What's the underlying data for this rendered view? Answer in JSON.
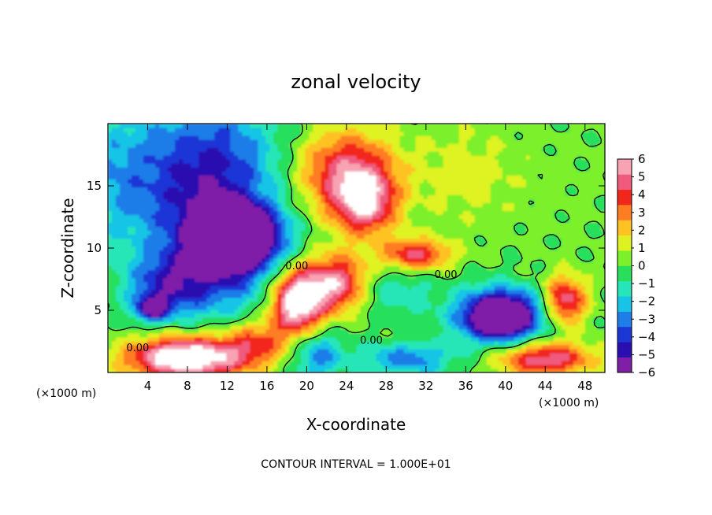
{
  "chart_data": {
    "type": "heatmap",
    "title": "zonal velocity",
    "xlabel": "X-coordinate",
    "ylabel": "Z-coordinate",
    "x_scale_note": "(×1000 m)",
    "z_scale_note": "(×1000 m)",
    "footer": "CONTOUR INTERVAL = 1.000E+01",
    "xlim": [
      0,
      50
    ],
    "ylim": [
      0,
      20
    ],
    "x_ticks": [
      4,
      8,
      12,
      16,
      20,
      24,
      28,
      32,
      36,
      40,
      44,
      48
    ],
    "y_ticks": [
      5,
      10,
      15
    ],
    "colorbar": {
      "range": [
        -6,
        6
      ],
      "tick_values": [
        6,
        5,
        4,
        3,
        2,
        1,
        0,
        -1,
        -2,
        -3,
        -4,
        -5,
        -6
      ],
      "tick_labels": [
        "6",
        "5",
        "4",
        "3",
        "2",
        "1",
        "0",
        "−1",
        "−2",
        "−3",
        "−4",
        "−5",
        "−6"
      ],
      "colors": [
        "#7f1fa8",
        "#2a0fb0",
        "#1d36d6",
        "#1f7de8",
        "#17c4e6",
        "#25e6b8",
        "#28df5c",
        "#7cf02a",
        "#dff221",
        "#ffc223",
        "#ff7d22",
        "#f2271c",
        "#ef5a7d",
        "#f7a3b3"
      ],
      "above_max_color": "#ffffff"
    },
    "contour_labels": [
      {
        "text": "0.00",
        "x": 3,
        "z": 1.7
      },
      {
        "text": "0.00",
        "x": 19,
        "z": 8.3
      },
      {
        "text": "0.00",
        "x": 26.5,
        "z": 2.3
      },
      {
        "text": "0.00",
        "x": 34,
        "z": 7.6
      }
    ],
    "features": [
      {
        "x": 0,
        "z": 16,
        "rx": 5,
        "rz": 5,
        "value": -2
      },
      {
        "x": 10,
        "z": 15,
        "rx": 7,
        "rz": 7,
        "value": -5
      },
      {
        "x": 13,
        "z": 11,
        "rx": 4,
        "rz": 2.2,
        "value": -9
      },
      {
        "x": 6,
        "z": 7,
        "rx": 4,
        "rz": 2.5,
        "value": -3.5
      },
      {
        "x": 4.5,
        "z": 5.2,
        "rx": 1.6,
        "rz": 1,
        "value": -5
      },
      {
        "x": 12,
        "z": 8,
        "rx": 5,
        "rz": 3,
        "value": -2.5
      },
      {
        "x": 8,
        "z": 1.2,
        "rx": 6,
        "rz": 1.7,
        "value": 8
      },
      {
        "x": 15,
        "z": 2.5,
        "rx": 3,
        "rz": 1.7,
        "value": 3
      },
      {
        "x": 19,
        "z": 5.7,
        "rx": 2.6,
        "rz": 2.6,
        "value": 7.5
      },
      {
        "x": 23,
        "z": 7.2,
        "rx": 3,
        "rz": 2.3,
        "value": 5.5
      },
      {
        "x": 21,
        "z": 1.5,
        "rx": 2.5,
        "rz": 2,
        "value": -3
      },
      {
        "x": 24,
        "z": 16,
        "rx": 5,
        "rz": 3.5,
        "value": 5
      },
      {
        "x": 26,
        "z": 13.5,
        "rx": 3,
        "rz": 2.5,
        "value": 4.5
      },
      {
        "x": 31,
        "z": 9.5,
        "rx": 3.5,
        "rz": 1.3,
        "value": 4.5
      },
      {
        "x": 29,
        "z": 6.5,
        "rx": 4,
        "rz": 2,
        "value": -1.5
      },
      {
        "x": 39.5,
        "z": 4.6,
        "rx": 4,
        "rz": 2,
        "value": -9
      },
      {
        "x": 46,
        "z": 5.8,
        "rx": 2.2,
        "rz": 2,
        "value": 5
      },
      {
        "x": 44,
        "z": 1.1,
        "rx": 5,
        "rz": 1.4,
        "value": 5
      },
      {
        "x": 30,
        "z": 1.1,
        "rx": 5,
        "rz": 1.3,
        "value": -3
      },
      {
        "x": 45,
        "z": 15,
        "rx": 6,
        "rz": 6,
        "value": 0.3
      },
      {
        "x": 36,
        "z": 16,
        "rx": 5,
        "rz": 4,
        "value": 1.3
      }
    ]
  }
}
